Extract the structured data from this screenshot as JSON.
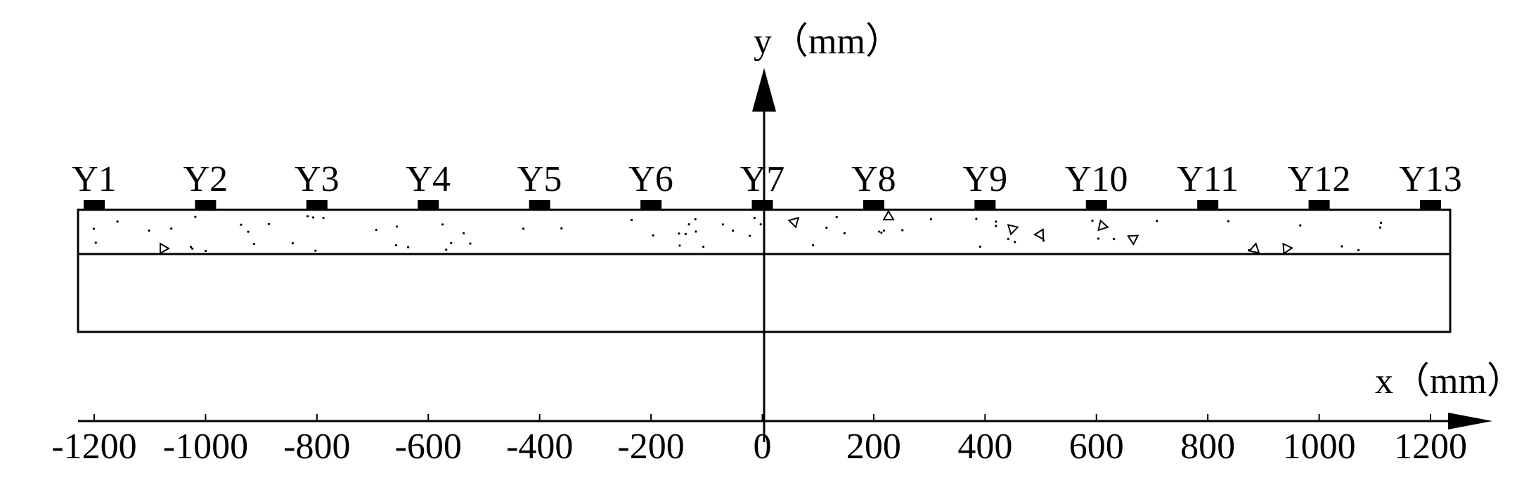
{
  "axis": {
    "x_label": "x（mm）",
    "y_label": "y（mm）",
    "xlim": [
      -1200,
      1200
    ],
    "xticks": [
      -1200,
      -1000,
      -800,
      -600,
      -400,
      -200,
      0,
      200,
      400,
      600,
      800,
      1000,
      1200
    ]
  },
  "sensors": {
    "labels": [
      "Y1",
      "Y2",
      "Y3",
      "Y4",
      "Y5",
      "Y6",
      "Y7",
      "Y8",
      "Y9",
      "Y10",
      "Y11",
      "Y12",
      "Y13"
    ],
    "x": [
      -1200,
      -1000,
      -800,
      -600,
      -400,
      -200,
      0,
      200,
      400,
      600,
      800,
      1000,
      1200
    ]
  }
}
